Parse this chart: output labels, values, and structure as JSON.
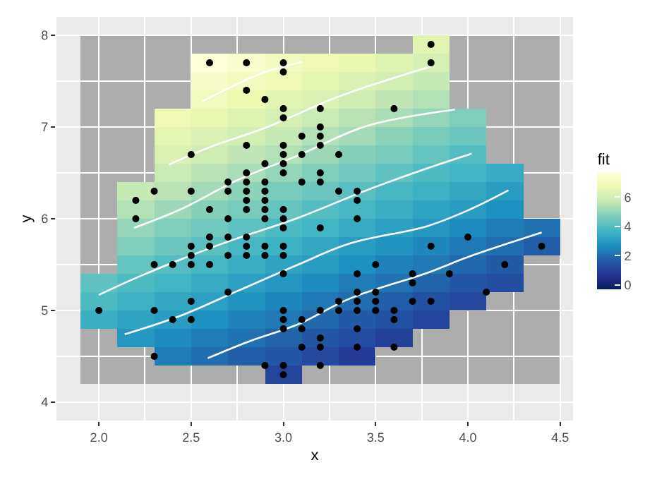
{
  "chart_data": {
    "type": "heatmap",
    "xlabel": "x",
    "ylabel": "y",
    "clabel": "fit",
    "xlim": [
      1.77,
      4.57
    ],
    "ylim": [
      3.8,
      8.2
    ],
    "xticks": [
      {
        "value": 2,
        "label": "2.0"
      },
      {
        "value": 2.5,
        "label": "2.5"
      },
      {
        "value": 3,
        "label": "3.0"
      },
      {
        "value": 3.5,
        "label": "3.5"
      },
      {
        "value": 4,
        "label": "4.0"
      },
      {
        "value": 4.5,
        "label": "4.5"
      }
    ],
    "yticks": [
      4,
      5,
      6,
      7,
      8
    ],
    "grid": true,
    "bands": [
      {
        "axis": "x",
        "from": 1.9,
        "to": 4.5,
        "color": "#adadad"
      }
    ],
    "clim": [
      -0.3,
      7.7
    ],
    "cticks": [
      0,
      2,
      4,
      6
    ],
    "x": [
      2.0,
      2.2,
      2.4,
      2.6,
      2.8,
      3.0,
      3.2,
      3.4,
      3.6,
      3.8,
      4.0,
      4.2,
      4.4
    ],
    "y": [
      7.9,
      7.7,
      7.5,
      7.3,
      7.1,
      6.9,
      6.7,
      6.5,
      6.3,
      6.1,
      5.9,
      5.7,
      5.5,
      5.3,
      5.1,
      4.9,
      4.7,
      4.5,
      4.3
    ],
    "cells": [
      [
        null,
        null,
        null,
        null,
        null,
        null,
        null,
        null,
        null,
        6.4,
        null,
        null,
        null
      ],
      [
        null,
        null,
        null,
        7.7,
        7.4,
        7.1,
        6.9,
        6.6,
        6.3,
        6.1,
        null,
        null,
        null
      ],
      [
        null,
        null,
        null,
        7.3,
        7.0,
        6.8,
        6.5,
        6.2,
        6.0,
        5.7,
        null,
        null,
        null
      ],
      [
        null,
        null,
        null,
        7.0,
        6.7,
        6.4,
        6.2,
        5.9,
        5.6,
        5.4,
        null,
        null,
        null
      ],
      [
        null,
        null,
        6.9,
        6.6,
        6.3,
        6.1,
        5.8,
        5.5,
        5.3,
        5.0,
        4.7,
        null,
        null
      ],
      [
        null,
        null,
        6.5,
        6.2,
        6.0,
        5.7,
        5.4,
        5.2,
        4.9,
        4.6,
        4.4,
        null,
        null
      ],
      [
        null,
        null,
        6.2,
        5.9,
        5.6,
        5.4,
        5.1,
        4.8,
        4.6,
        4.3,
        4.0,
        null,
        null
      ],
      [
        null,
        null,
        5.8,
        5.5,
        5.3,
        5.0,
        4.7,
        4.5,
        4.2,
        3.9,
        3.7,
        3.4,
        null
      ],
      [
        null,
        5.7,
        5.5,
        5.2,
        4.9,
        4.6,
        4.4,
        4.1,
        3.8,
        3.6,
        3.3,
        3.0,
        null
      ],
      [
        null,
        5.4,
        5.1,
        4.8,
        4.6,
        4.3,
        4.0,
        3.8,
        3.5,
        3.2,
        3.0,
        2.7,
        null
      ],
      [
        null,
        5.0,
        4.7,
        4.5,
        4.2,
        3.9,
        3.7,
        3.4,
        3.1,
        2.9,
        2.6,
        2.3,
        2.1
      ],
      [
        null,
        4.7,
        4.4,
        4.1,
        3.8,
        3.6,
        3.3,
        3.0,
        2.8,
        2.5,
        2.2,
        2.0,
        1.7
      ],
      [
        null,
        4.3,
        4.0,
        3.8,
        3.5,
        3.2,
        3.0,
        2.7,
        2.4,
        2.2,
        1.9,
        1.6,
        null
      ],
      [
        4.2,
        3.9,
        3.7,
        3.4,
        3.1,
        2.9,
        2.6,
        2.3,
        2.1,
        1.8,
        1.5,
        1.3,
        null
      ],
      [
        3.9,
        3.6,
        3.3,
        3.1,
        2.8,
        2.5,
        2.2,
        2.0,
        1.7,
        1.4,
        1.2,
        null,
        null
      ],
      [
        3.5,
        3.2,
        3.0,
        2.7,
        2.4,
        2.2,
        1.9,
        1.6,
        1.4,
        1.1,
        null,
        null,
        null
      ],
      [
        null,
        2.9,
        2.6,
        2.3,
        2.1,
        1.8,
        1.5,
        1.3,
        1.0,
        null,
        null,
        null,
        null
      ],
      [
        null,
        null,
        2.3,
        2.0,
        1.7,
        1.5,
        1.2,
        0.9,
        null,
        null,
        null,
        null,
        null
      ],
      [
        null,
        null,
        null,
        null,
        null,
        1.1,
        null,
        null,
        null,
        null,
        null,
        null,
        null
      ]
    ],
    "series": [
      {
        "type": "line",
        "color": "#ffffff",
        "x": [
          2.56,
          2.71,
          2.9,
          3.1
        ],
        "values": [
          7.28,
          7.43,
          7.6,
          7.71
        ]
      },
      {
        "type": "line",
        "color": "#ffffff",
        "x": [
          2.38,
          2.6,
          2.9,
          3.31,
          3.8
        ],
        "values": [
          6.59,
          6.78,
          6.99,
          7.34,
          7.66
        ]
      },
      {
        "type": "line",
        "color": "#ffffff",
        "x": [
          2.19,
          2.44,
          2.76,
          3.08,
          3.45,
          3.93
        ],
        "values": [
          5.9,
          6.1,
          6.43,
          6.69,
          7.01,
          7.19
        ]
      },
      {
        "type": "line",
        "color": "#ffffff",
        "x": [
          2.0,
          2.23,
          2.67,
          3.08,
          3.45,
          3.78,
          4.02
        ],
        "values": [
          5.17,
          5.38,
          5.73,
          6.01,
          6.31,
          6.55,
          6.71
        ]
      },
      {
        "type": "line",
        "color": "#ffffff",
        "x": [
          2.14,
          2.44,
          2.76,
          3.08,
          3.36,
          3.78,
          4.01,
          4.22
        ],
        "values": [
          4.74,
          4.94,
          5.22,
          5.5,
          5.73,
          5.92,
          6.1,
          6.31
        ]
      },
      {
        "type": "line",
        "color": "#ffffff",
        "x": [
          2.59,
          2.81,
          3.08,
          3.36,
          3.78,
          4.01,
          4.4
        ],
        "values": [
          4.48,
          4.66,
          4.85,
          5.13,
          5.41,
          5.59,
          5.85
        ]
      },
      {
        "type": "scatter",
        "color": "#000000",
        "marker": "circle",
        "x": [
          3.5,
          3.0,
          3.2,
          3.1,
          3.6,
          3.9,
          3.4,
          3.4,
          2.9,
          3.1,
          3.7,
          3.4,
          3.0,
          3.0,
          4.0,
          4.4,
          3.8,
          3.8,
          3.4,
          3.7,
          3.6,
          3.3,
          3.0,
          3.5,
          3.4,
          3.1,
          4.1,
          4.2,
          3.2,
          3.5,
          3.6,
          3.0,
          3.4,
          3.5,
          2.3,
          3.2,
          3.2,
          3.7,
          3.3,
          3.2,
          3.2,
          3.1,
          2.3,
          2.8,
          2.8,
          3.3,
          2.4,
          2.9,
          2.7,
          2.0,
          3.0,
          2.2,
          2.9,
          2.9,
          3.1,
          3.0,
          2.7,
          2.2,
          2.5,
          3.2,
          2.8,
          2.5,
          2.9,
          3.0,
          2.8,
          3.0,
          2.9,
          2.6,
          2.4,
          2.7,
          3.0,
          3.4,
          2.3,
          2.5,
          2.6,
          3.0,
          2.6,
          2.3,
          2.7,
          3.0,
          2.9,
          2.9,
          2.5,
          3.0,
          2.9,
          3.0,
          3.0,
          2.5,
          2.9,
          2.5,
          3.6,
          3.2,
          2.7,
          3.0,
          2.5,
          2.8,
          3.8,
          2.6,
          3.2,
          2.8,
          2.8,
          2.7,
          3.3,
          3.2,
          2.8,
          2.8,
          3.0,
          2.8,
          3.8,
          2.8,
          2.6,
          3.0,
          3.4,
          3.1,
          3.0,
          3.2,
          3.4
        ],
        "values": [
          5.1,
          4.9,
          4.7,
          4.6,
          5.0,
          5.4,
          4.6,
          5.0,
          4.4,
          4.9,
          5.4,
          4.8,
          4.8,
          4.3,
          5.8,
          5.7,
          5.7,
          5.1,
          5.4,
          5.1,
          4.6,
          5.1,
          5.0,
          5.2,
          5.2,
          4.8,
          5.2,
          5.5,
          5.0,
          5.5,
          4.9,
          4.4,
          5.1,
          5.0,
          4.5,
          4.4,
          4.6,
          5.3,
          5.0,
          7.0,
          6.4,
          6.9,
          5.5,
          6.5,
          5.7,
          6.3,
          4.9,
          6.6,
          5.2,
          5.0,
          5.9,
          6.0,
          6.1,
          5.6,
          6.7,
          5.6,
          5.8,
          6.2,
          5.6,
          5.9,
          6.1,
          6.3,
          6.4,
          6.6,
          6.8,
          6.7,
          6.0,
          5.7,
          5.5,
          6.0,
          5.4,
          6.0,
          6.3,
          5.5,
          5.5,
          6.1,
          5.8,
          5.0,
          5.6,
          5.7,
          5.7,
          6.2,
          5.1,
          7.1,
          6.3,
          6.5,
          7.6,
          4.9,
          7.3,
          6.7,
          7.2,
          6.5,
          6.4,
          6.8,
          5.7,
          5.8,
          7.7,
          7.7,
          6.9,
          5.6,
          7.7,
          6.3,
          6.7,
          7.2,
          6.2,
          6.4,
          7.2,
          7.4,
          7.9,
          6.3,
          6.1,
          7.7,
          6.3,
          6.4,
          6.0,
          6.8,
          6.2
        ]
      }
    ]
  }
}
